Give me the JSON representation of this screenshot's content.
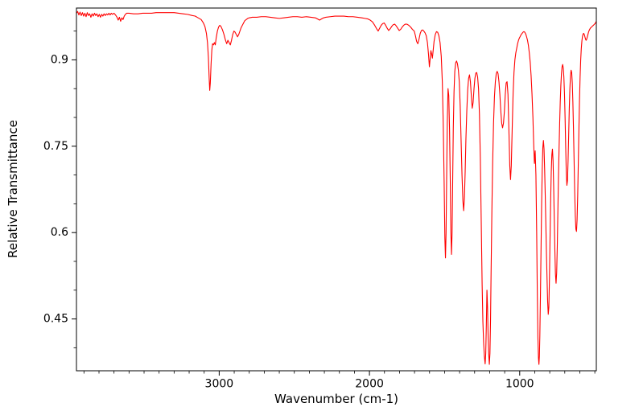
{
  "figure": {
    "background": "#ffffff"
  },
  "chart_data": {
    "type": "line",
    "title": "",
    "xlabel": "Wavenumber (cm-1)",
    "ylabel": "Relative Transmittance",
    "legend": "none",
    "grid": false,
    "x_axis": {
      "min": 490,
      "max": 3950,
      "reversed": true,
      "minor_step": 100,
      "ticks": [
        {
          "v": 3000,
          "label": "3000"
        },
        {
          "v": 2000,
          "label": "2000"
        },
        {
          "v": 1000,
          "label": "1000"
        }
      ]
    },
    "y_axis": {
      "min": 0.36,
      "max": 0.99,
      "minor_step": 0.05,
      "ticks": [
        {
          "v": 0.9,
          "label": "0.9"
        },
        {
          "v": 0.75,
          "label": "0.75"
        },
        {
          "v": 0.6,
          "label": "0.6"
        },
        {
          "v": 0.45,
          "label": "0.45"
        }
      ]
    },
    "line": {
      "name": "ir-transmittance-spectrum",
      "color": "#ff0000",
      "width": 1.1
    },
    "points": [
      [
        3950,
        0.981
      ],
      [
        3942,
        0.984
      ],
      [
        3934,
        0.978
      ],
      [
        3926,
        0.983
      ],
      [
        3918,
        0.977
      ],
      [
        3910,
        0.982
      ],
      [
        3902,
        0.976
      ],
      [
        3894,
        0.981
      ],
      [
        3886,
        0.975
      ],
      [
        3878,
        0.982
      ],
      [
        3870,
        0.977
      ],
      [
        3862,
        0.98
      ],
      [
        3854,
        0.974
      ],
      [
        3846,
        0.98
      ],
      [
        3838,
        0.976
      ],
      [
        3830,
        0.981
      ],
      [
        3822,
        0.977
      ],
      [
        3814,
        0.98
      ],
      [
        3806,
        0.975
      ],
      [
        3798,
        0.979
      ],
      [
        3790,
        0.974
      ],
      [
        3782,
        0.979
      ],
      [
        3774,
        0.976
      ],
      [
        3766,
        0.98
      ],
      [
        3758,
        0.977
      ],
      [
        3750,
        0.98
      ],
      [
        3742,
        0.978
      ],
      [
        3734,
        0.981
      ],
      [
        3726,
        0.978
      ],
      [
        3718,
        0.981
      ],
      [
        3710,
        0.979
      ],
      [
        3700,
        0.981
      ],
      [
        3690,
        0.978
      ],
      [
        3680,
        0.974
      ],
      [
        3672,
        0.969
      ],
      [
        3664,
        0.974
      ],
      [
        3656,
        0.967
      ],
      [
        3648,
        0.973
      ],
      [
        3640,
        0.97
      ],
      [
        3632,
        0.976
      ],
      [
        3624,
        0.979
      ],
      [
        3616,
        0.981
      ],
      [
        3600,
        0.981
      ],
      [
        3570,
        0.98
      ],
      [
        3540,
        0.98
      ],
      [
        3510,
        0.981
      ],
      [
        3480,
        0.981
      ],
      [
        3450,
        0.981
      ],
      [
        3420,
        0.982
      ],
      [
        3390,
        0.982
      ],
      [
        3360,
        0.982
      ],
      [
        3330,
        0.982
      ],
      [
        3300,
        0.982
      ],
      [
        3270,
        0.981
      ],
      [
        3240,
        0.98
      ],
      [
        3210,
        0.979
      ],
      [
        3180,
        0.977
      ],
      [
        3160,
        0.976
      ],
      [
        3140,
        0.973
      ],
      [
        3120,
        0.97
      ],
      [
        3105,
        0.964
      ],
      [
        3095,
        0.958
      ],
      [
        3085,
        0.946
      ],
      [
        3078,
        0.93
      ],
      [
        3072,
        0.905
      ],
      [
        3067,
        0.87
      ],
      [
        3063,
        0.847
      ],
      [
        3059,
        0.86
      ],
      [
        3054,
        0.893
      ],
      [
        3049,
        0.917
      ],
      [
        3044,
        0.928
      ],
      [
        3038,
        0.926
      ],
      [
        3032,
        0.93
      ],
      [
        3026,
        0.926
      ],
      [
        3020,
        0.938
      ],
      [
        3012,
        0.95
      ],
      [
        3004,
        0.957
      ],
      [
        2996,
        0.96
      ],
      [
        2988,
        0.958
      ],
      [
        2978,
        0.952
      ],
      [
        2968,
        0.944
      ],
      [
        2958,
        0.934
      ],
      [
        2950,
        0.928
      ],
      [
        2942,
        0.934
      ],
      [
        2934,
        0.93
      ],
      [
        2926,
        0.926
      ],
      [
        2918,
        0.934
      ],
      [
        2910,
        0.944
      ],
      [
        2902,
        0.95
      ],
      [
        2894,
        0.948
      ],
      [
        2886,
        0.944
      ],
      [
        2878,
        0.94
      ],
      [
        2870,
        0.944
      ],
      [
        2862,
        0.95
      ],
      [
        2854,
        0.956
      ],
      [
        2846,
        0.96
      ],
      [
        2838,
        0.964
      ],
      [
        2830,
        0.968
      ],
      [
        2820,
        0.97
      ],
      [
        2810,
        0.972
      ],
      [
        2800,
        0.973
      ],
      [
        2780,
        0.974
      ],
      [
        2750,
        0.974
      ],
      [
        2720,
        0.975
      ],
      [
        2690,
        0.975
      ],
      [
        2660,
        0.974
      ],
      [
        2630,
        0.973
      ],
      [
        2600,
        0.972
      ],
      [
        2570,
        0.973
      ],
      [
        2540,
        0.974
      ],
      [
        2510,
        0.975
      ],
      [
        2480,
        0.975
      ],
      [
        2450,
        0.974
      ],
      [
        2420,
        0.975
      ],
      [
        2390,
        0.974
      ],
      [
        2360,
        0.973
      ],
      [
        2345,
        0.971
      ],
      [
        2332,
        0.969
      ],
      [
        2320,
        0.971
      ],
      [
        2305,
        0.973
      ],
      [
        2290,
        0.974
      ],
      [
        2260,
        0.975
      ],
      [
        2230,
        0.976
      ],
      [
        2200,
        0.976
      ],
      [
        2170,
        0.976
      ],
      [
        2140,
        0.975
      ],
      [
        2110,
        0.975
      ],
      [
        2080,
        0.974
      ],
      [
        2050,
        0.973
      ],
      [
        2030,
        0.972
      ],
      [
        2010,
        0.971
      ],
      [
        1995,
        0.969
      ],
      [
        1980,
        0.966
      ],
      [
        1965,
        0.96
      ],
      [
        1952,
        0.954
      ],
      [
        1942,
        0.95
      ],
      [
        1932,
        0.955
      ],
      [
        1922,
        0.96
      ],
      [
        1912,
        0.963
      ],
      [
        1902,
        0.964
      ],
      [
        1892,
        0.96
      ],
      [
        1882,
        0.955
      ],
      [
        1872,
        0.951
      ],
      [
        1862,
        0.954
      ],
      [
        1852,
        0.958
      ],
      [
        1842,
        0.961
      ],
      [
        1832,
        0.962
      ],
      [
        1822,
        0.959
      ],
      [
        1812,
        0.955
      ],
      [
        1802,
        0.951
      ],
      [
        1792,
        0.953
      ],
      [
        1782,
        0.957
      ],
      [
        1772,
        0.96
      ],
      [
        1762,
        0.962
      ],
      [
        1750,
        0.962
      ],
      [
        1738,
        0.96
      ],
      [
        1726,
        0.957
      ],
      [
        1714,
        0.953
      ],
      [
        1702,
        0.95
      ],
      [
        1694,
        0.942
      ],
      [
        1686,
        0.932
      ],
      [
        1678,
        0.928
      ],
      [
        1670,
        0.936
      ],
      [
        1662,
        0.946
      ],
      [
        1654,
        0.951
      ],
      [
        1646,
        0.952
      ],
      [
        1638,
        0.95
      ],
      [
        1630,
        0.947
      ],
      [
        1622,
        0.942
      ],
      [
        1614,
        0.93
      ],
      [
        1607,
        0.91
      ],
      [
        1601,
        0.888
      ],
      [
        1596,
        0.902
      ],
      [
        1591,
        0.916
      ],
      [
        1586,
        0.91
      ],
      [
        1581,
        0.903
      ],
      [
        1576,
        0.916
      ],
      [
        1570,
        0.932
      ],
      [
        1562,
        0.944
      ],
      [
        1554,
        0.949
      ],
      [
        1546,
        0.948
      ],
      [
        1538,
        0.942
      ],
      [
        1530,
        0.93
      ],
      [
        1522,
        0.906
      ],
      [
        1515,
        0.862
      ],
      [
        1509,
        0.79
      ],
      [
        1503,
        0.69
      ],
      [
        1498,
        0.59
      ],
      [
        1494,
        0.556
      ],
      [
        1490,
        0.6
      ],
      [
        1486,
        0.7
      ],
      [
        1482,
        0.79
      ],
      [
        1477,
        0.85
      ],
      [
        1472,
        0.838
      ],
      [
        1467,
        0.78
      ],
      [
        1462,
        0.69
      ],
      [
        1458,
        0.6
      ],
      [
        1454,
        0.562
      ],
      [
        1450,
        0.6
      ],
      [
        1446,
        0.69
      ],
      [
        1442,
        0.78
      ],
      [
        1437,
        0.845
      ],
      [
        1432,
        0.88
      ],
      [
        1426,
        0.895
      ],
      [
        1420,
        0.898
      ],
      [
        1414,
        0.893
      ],
      [
        1408,
        0.882
      ],
      [
        1402,
        0.862
      ],
      [
        1396,
        0.82
      ],
      [
        1390,
        0.76
      ],
      [
        1384,
        0.7
      ],
      [
        1378,
        0.655
      ],
      [
        1373,
        0.638
      ],
      [
        1368,
        0.66
      ],
      [
        1363,
        0.705
      ],
      [
        1358,
        0.762
      ],
      [
        1352,
        0.812
      ],
      [
        1346,
        0.848
      ],
      [
        1340,
        0.868
      ],
      [
        1334,
        0.874
      ],
      [
        1328,
        0.862
      ],
      [
        1322,
        0.838
      ],
      [
        1316,
        0.816
      ],
      [
        1310,
        0.826
      ],
      [
        1304,
        0.85
      ],
      [
        1298,
        0.868
      ],
      [
        1292,
        0.877
      ],
      [
        1286,
        0.878
      ],
      [
        1280,
        0.87
      ],
      [
        1274,
        0.85
      ],
      [
        1268,
        0.806
      ],
      [
        1262,
        0.73
      ],
      [
        1256,
        0.62
      ],
      [
        1250,
        0.51
      ],
      [
        1245,
        0.445
      ],
      [
        1240,
        0.408
      ],
      [
        1235,
        0.385
      ],
      [
        1230,
        0.372
      ],
      [
        1226,
        0.39
      ],
      [
        1222,
        0.44
      ],
      [
        1218,
        0.5
      ],
      [
        1214,
        0.47
      ],
      [
        1210,
        0.42
      ],
      [
        1206,
        0.388
      ],
      [
        1202,
        0.371
      ],
      [
        1198,
        0.39
      ],
      [
        1194,
        0.45
      ],
      [
        1190,
        0.54
      ],
      [
        1185,
        0.64
      ],
      [
        1180,
        0.72
      ],
      [
        1174,
        0.79
      ],
      [
        1168,
        0.836
      ],
      [
        1162,
        0.862
      ],
      [
        1156,
        0.876
      ],
      [
        1150,
        0.88
      ],
      [
        1144,
        0.876
      ],
      [
        1138,
        0.862
      ],
      [
        1132,
        0.84
      ],
      [
        1126,
        0.812
      ],
      [
        1120,
        0.79
      ],
      [
        1114,
        0.782
      ],
      [
        1108,
        0.79
      ],
      [
        1102,
        0.81
      ],
      [
        1096,
        0.84
      ],
      [
        1090,
        0.86
      ],
      [
        1084,
        0.862
      ],
      [
        1078,
        0.84
      ],
      [
        1072,
        0.78
      ],
      [
        1066,
        0.716
      ],
      [
        1061,
        0.692
      ],
      [
        1056,
        0.716
      ],
      [
        1050,
        0.78
      ],
      [
        1044,
        0.84
      ],
      [
        1038,
        0.878
      ],
      [
        1032,
        0.9
      ],
      [
        1026,
        0.912
      ],
      [
        1020,
        0.92
      ],
      [
        1014,
        0.928
      ],
      [
        1008,
        0.934
      ],
      [
        1002,
        0.938
      ],
      [
        996,
        0.941
      ],
      [
        990,
        0.944
      ],
      [
        984,
        0.946
      ],
      [
        978,
        0.948
      ],
      [
        972,
        0.949
      ],
      [
        966,
        0.948
      ],
      [
        960,
        0.945
      ],
      [
        954,
        0.94
      ],
      [
        948,
        0.934
      ],
      [
        942,
        0.925
      ],
      [
        936,
        0.912
      ],
      [
        930,
        0.896
      ],
      [
        924,
        0.872
      ],
      [
        918,
        0.84
      ],
      [
        912,
        0.8
      ],
      [
        907,
        0.755
      ],
      [
        902,
        0.72
      ],
      [
        897,
        0.742
      ],
      [
        892,
        0.7
      ],
      [
        887,
        0.6
      ],
      [
        883,
        0.5
      ],
      [
        879,
        0.42
      ],
      [
        875,
        0.382
      ],
      [
        872,
        0.371
      ],
      [
        869,
        0.385
      ],
      [
        866,
        0.42
      ],
      [
        862,
        0.49
      ],
      [
        858,
        0.57
      ],
      [
        854,
        0.65
      ],
      [
        850,
        0.71
      ],
      [
        846,
        0.748
      ],
      [
        842,
        0.76
      ],
      [
        838,
        0.745
      ],
      [
        834,
        0.71
      ],
      [
        830,
        0.665
      ],
      [
        826,
        0.615
      ],
      [
        822,
        0.565
      ],
      [
        818,
        0.52
      ],
      [
        814,
        0.48
      ],
      [
        810,
        0.458
      ],
      [
        806,
        0.47
      ],
      [
        802,
        0.52
      ],
      [
        798,
        0.59
      ],
      [
        794,
        0.655
      ],
      [
        790,
        0.705
      ],
      [
        786,
        0.735
      ],
      [
        782,
        0.745
      ],
      [
        778,
        0.725
      ],
      [
        774,
        0.68
      ],
      [
        770,
        0.625
      ],
      [
        766,
        0.57
      ],
      [
        762,
        0.528
      ],
      [
        758,
        0.512
      ],
      [
        754,
        0.53
      ],
      [
        750,
        0.575
      ],
      [
        746,
        0.635
      ],
      [
        742,
        0.695
      ],
      [
        738,
        0.745
      ],
      [
        734,
        0.79
      ],
      [
        730,
        0.828
      ],
      [
        726,
        0.856
      ],
      [
        722,
        0.876
      ],
      [
        718,
        0.888
      ],
      [
        714,
        0.892
      ],
      [
        710,
        0.886
      ],
      [
        706,
        0.87
      ],
      [
        702,
        0.842
      ],
      [
        698,
        0.8
      ],
      [
        694,
        0.75
      ],
      [
        690,
        0.706
      ],
      [
        686,
        0.682
      ],
      [
        682,
        0.69
      ],
      [
        678,
        0.725
      ],
      [
        674,
        0.77
      ],
      [
        670,
        0.815
      ],
      [
        666,
        0.85
      ],
      [
        662,
        0.872
      ],
      [
        658,
        0.882
      ],
      [
        654,
        0.878
      ],
      [
        650,
        0.86
      ],
      [
        646,
        0.826
      ],
      [
        642,
        0.78
      ],
      [
        638,
        0.726
      ],
      [
        634,
        0.672
      ],
      [
        630,
        0.63
      ],
      [
        626,
        0.606
      ],
      [
        622,
        0.602
      ],
      [
        618,
        0.622
      ],
      [
        614,
        0.664
      ],
      [
        610,
        0.72
      ],
      [
        606,
        0.778
      ],
      [
        602,
        0.83
      ],
      [
        598,
        0.87
      ],
      [
        594,
        0.9
      ],
      [
        590,
        0.92
      ],
      [
        586,
        0.933
      ],
      [
        582,
        0.941
      ],
      [
        578,
        0.945
      ],
      [
        574,
        0.946
      ],
      [
        570,
        0.944
      ],
      [
        566,
        0.94
      ],
      [
        562,
        0.936
      ],
      [
        558,
        0.934
      ],
      [
        554,
        0.936
      ],
      [
        550,
        0.94
      ],
      [
        546,
        0.944
      ],
      [
        542,
        0.948
      ],
      [
        538,
        0.951
      ],
      [
        534,
        0.953
      ],
      [
        530,
        0.955
      ],
      [
        526,
        0.956
      ],
      [
        522,
        0.957
      ],
      [
        518,
        0.958
      ],
      [
        514,
        0.959
      ],
      [
        510,
        0.96
      ],
      [
        506,
        0.961
      ],
      [
        502,
        0.962
      ],
      [
        498,
        0.963
      ],
      [
        494,
        0.965
      ],
      [
        490,
        0.967
      ]
    ]
  }
}
